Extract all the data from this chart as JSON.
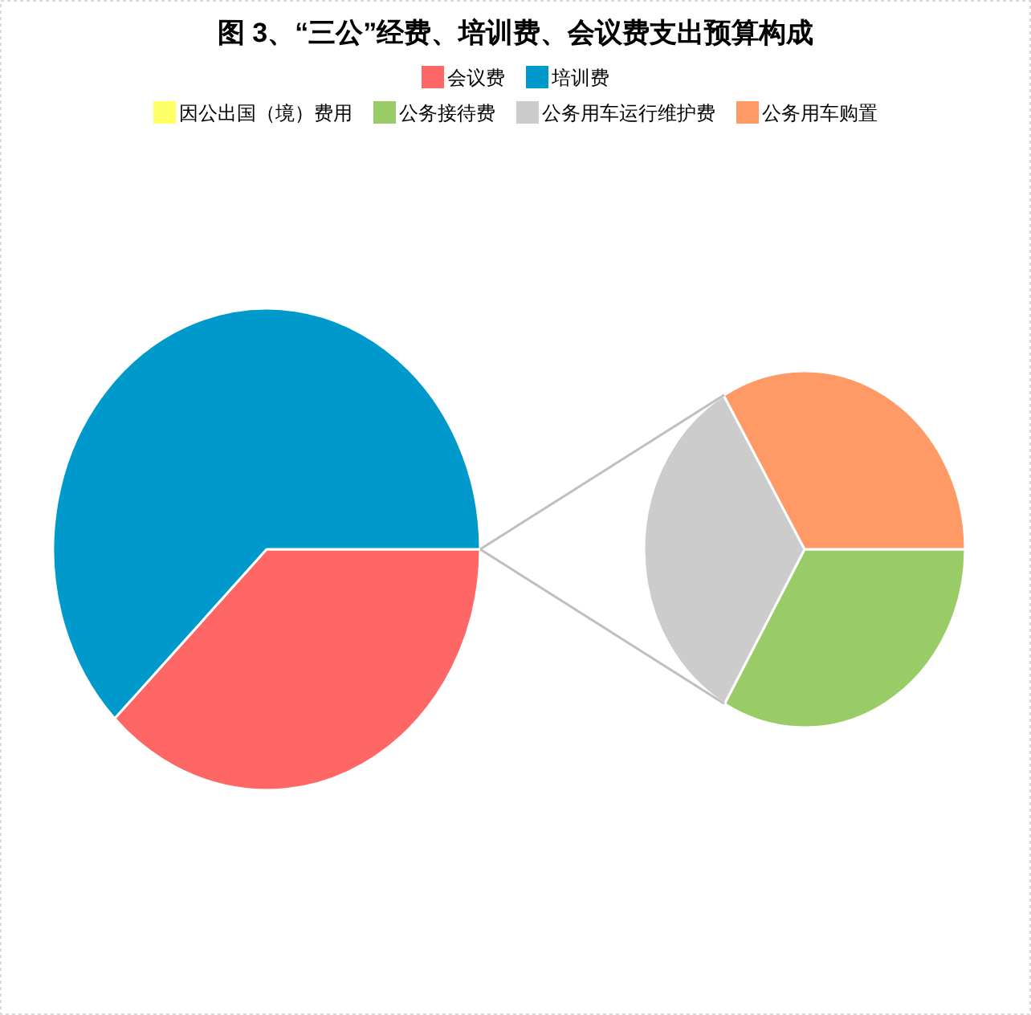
{
  "chart_data": [
    {
      "type": "pie",
      "title": "图 3、“三公”经费、培训费、会议费支出预算构成",
      "categories": [
        "会议费",
        "培训费"
      ],
      "values": [
        37.6,
        62.4
      ],
      "colors": [
        "#ff6666",
        "#0099cc"
      ],
      "legend": "top"
    },
    {
      "type": "pie",
      "categories": [
        "因公出国（境）费用",
        "公务接待费",
        "公务用车运行维护费",
        "公务用车购置"
      ],
      "values": [
        0,
        33.3,
        33.3,
        33.4
      ],
      "colors": [
        "#ffff66",
        "#99cc66",
        "#cccccc",
        "#ff9966"
      ],
      "legend": "top"
    }
  ]
}
